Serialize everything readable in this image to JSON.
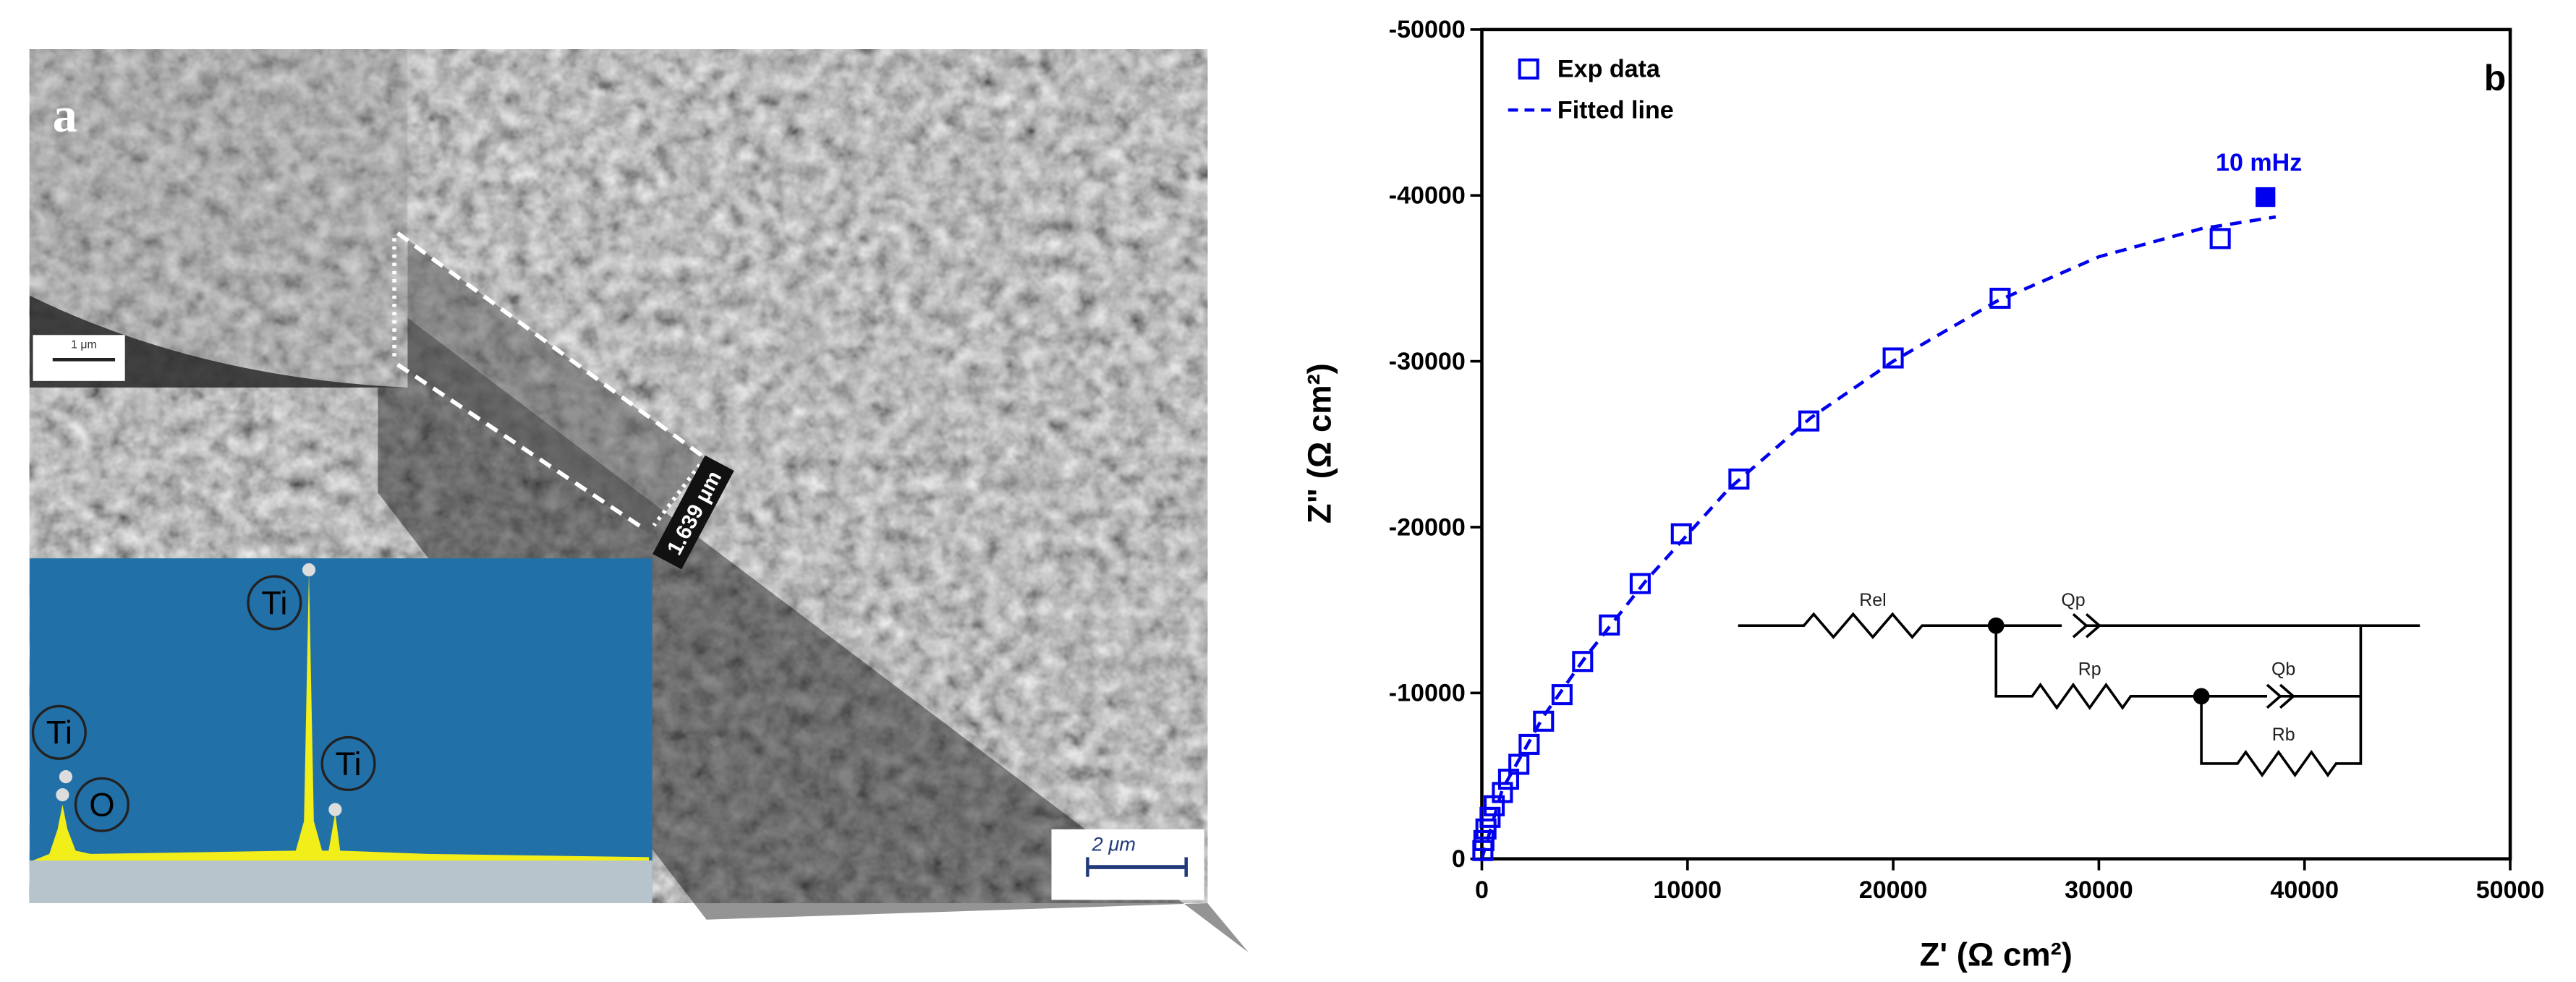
{
  "panel_a": {
    "label": "a",
    "inset_scale": "1 μm",
    "scale": "2 μm",
    "thickness": "1.639 μm",
    "eds_peaks": [
      "Ti",
      "O",
      "Ti",
      "Ti"
    ]
  },
  "chart_data": {
    "type": "scatter",
    "label": "b",
    "xlabel": "Z' (Ω cm²)",
    "ylabel": "Z\" (Ω cm²)",
    "xlim": [
      0,
      50000
    ],
    "xticks": [
      0,
      10000,
      20000,
      30000,
      40000,
      50000
    ],
    "ylim": [
      0,
      -50000
    ],
    "yticks": [
      0,
      -10000,
      -20000,
      -30000,
      -40000,
      -50000
    ],
    "legend": "upper left",
    "series": [
      {
        "name": "Exp data",
        "color": "#0000ee",
        "marker": "open-square",
        "x": [
          35900,
          25200,
          20000,
          15900,
          12500,
          9700,
          7700,
          6200,
          4900,
          3900,
          3000,
          2300,
          1800,
          1300,
          1000,
          600,
          400,
          200,
          100,
          50
        ],
        "values": [
          -37400,
          -33800,
          -30200,
          -26400,
          -22900,
          -19600,
          -16600,
          -14100,
          -11900,
          -9900,
          -8300,
          -6900,
          -5700,
          -4800,
          -4000,
          -3200,
          -2500,
          -1800,
          -1100,
          -500
        ]
      },
      {
        "name": "Fitted line",
        "color": "#0000ee",
        "style": "dashed",
        "x": [
          0,
          1000,
          3000,
          5000,
          8000,
          12000,
          16000,
          20000,
          25000,
          30000,
          35000,
          38600
        ],
        "values": [
          0,
          -4200,
          -8600,
          -12100,
          -16800,
          -22300,
          -26600,
          -30000,
          -33600,
          -36300,
          -38000,
          -38700
        ]
      }
    ],
    "annotation": {
      "text": "10 mHz",
      "x": 38100,
      "y": -39900,
      "color": "#0000ee"
    },
    "circuit": {
      "elements": [
        "Rel",
        "Qp",
        "Rp",
        "Qb",
        "Rb"
      ]
    }
  }
}
